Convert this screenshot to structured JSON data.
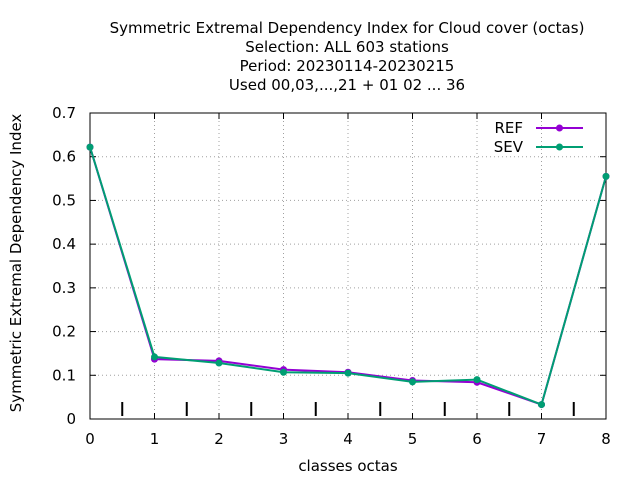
{
  "chart_data": {
    "type": "line",
    "title_lines": [
      "Symmetric Extremal Dependency Index  for Cloud cover (octas)",
      "Selection: ALL    603 stations",
      "Period: 20230114-20230215",
      "Used  00,03,...,21  + 01 02 ... 36"
    ],
    "xlabel": "classes octas",
    "ylabel": "Symmetric Extremal Dependency Index",
    "xlim": [
      0,
      8
    ],
    "ylim": [
      0,
      0.7
    ],
    "x_ticks": [
      "0",
      "1",
      "2",
      "3",
      "4",
      "5",
      "6",
      "7",
      "8"
    ],
    "y_ticks": [
      "0",
      "0.1",
      "0.2",
      "0.3",
      "0.4",
      "0.5",
      "0.6",
      "0.7"
    ],
    "grid": true,
    "legend_position": "top-right",
    "minor_tick_marks_x": [
      0.5,
      1.5,
      2.5,
      3.5,
      4.5,
      5.5,
      6.5,
      7.5
    ],
    "x": [
      0,
      1,
      2,
      3,
      4,
      5,
      6,
      7,
      8
    ],
    "series": [
      {
        "name": "REF",
        "color": "#9400d3",
        "values": [
          0.622,
          0.137,
          0.133,
          0.113,
          0.107,
          0.088,
          0.084,
          0.033,
          0.555
        ]
      },
      {
        "name": "SEV",
        "color": "#009e73",
        "values": [
          0.622,
          0.142,
          0.128,
          0.107,
          0.105,
          0.085,
          0.09,
          0.033,
          0.555
        ]
      }
    ]
  }
}
